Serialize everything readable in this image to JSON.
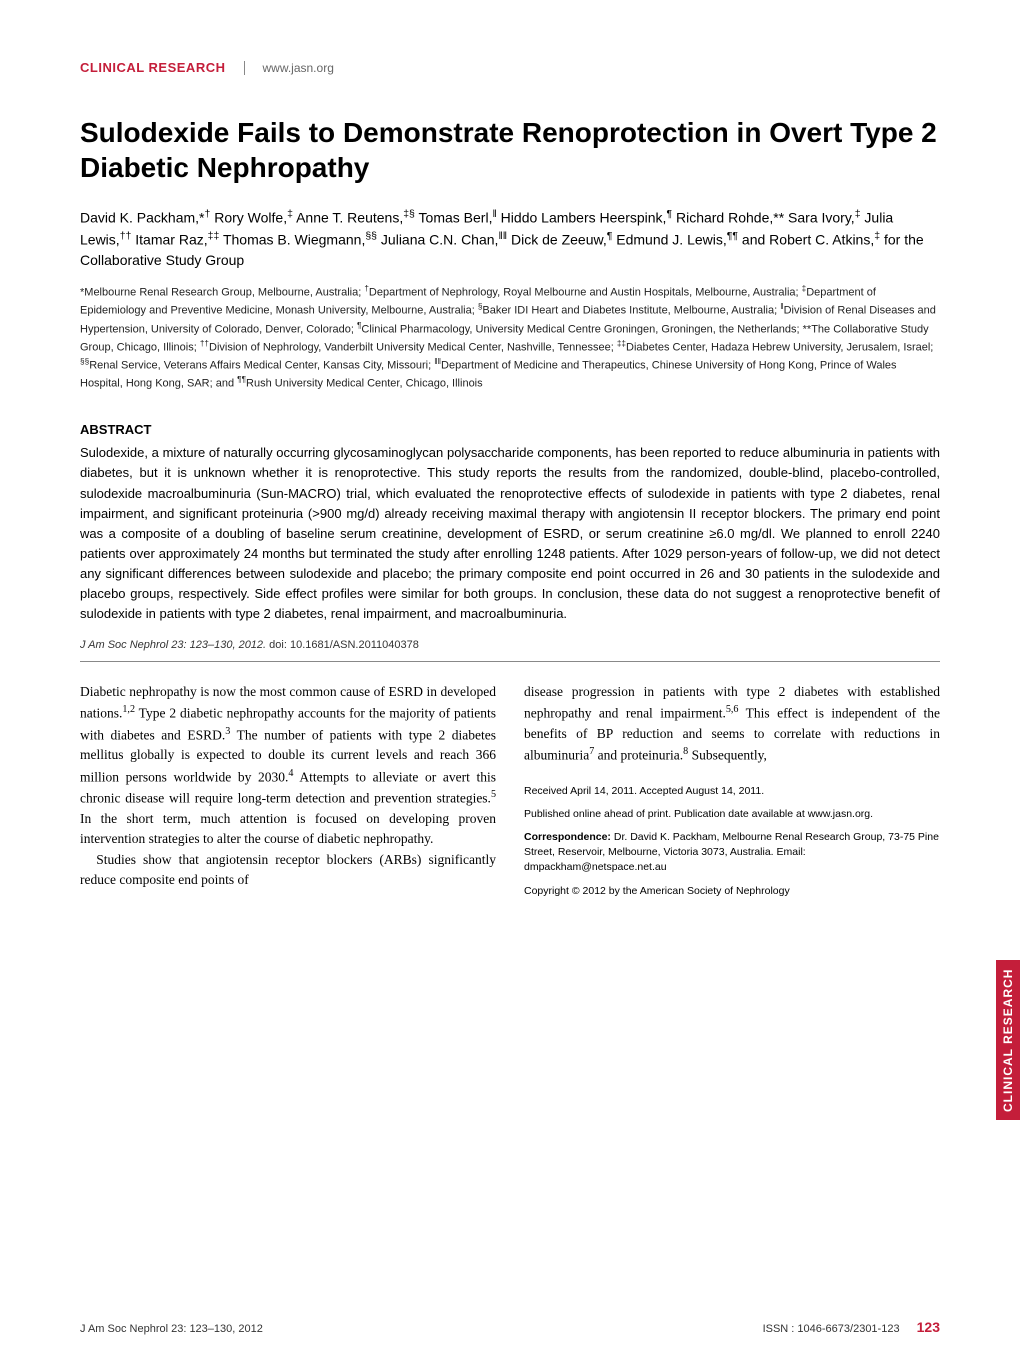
{
  "colors": {
    "accent": "#c41e3a",
    "text": "#000000",
    "muted": "#666666",
    "rule": "#888888",
    "background": "#ffffff",
    "tab_text": "#ffffff"
  },
  "typography": {
    "title_fontsize_pt": 21,
    "body_fontsize_pt": 10,
    "abstract_fontsize_pt": 10,
    "affil_fontsize_pt": 8.5,
    "meta_fontsize_pt": 8
  },
  "header": {
    "section_label": "CLINICAL RESEARCH",
    "site_url": "www.jasn.org"
  },
  "title": "Sulodexide Fails to Demonstrate Renoprotection in Overt Type 2 Diabetic Nephropathy",
  "authors_html": "David K. Packham,*<sup>†</sup> Rory Wolfe,<sup>‡</sup> Anne T. Reutens,<sup>‡§</sup> Tomas Berl,<sup>‖</sup> Hiddo Lambers Heerspink,<sup>¶</sup> Richard Rohde,** Sara Ivory,<sup>‡</sup> Julia Lewis,<sup>††</sup> Itamar Raz,<sup>‡‡</sup> Thomas B. Wiegmann,<sup>§§</sup> Juliana C.N. Chan,<sup>‖‖</sup> Dick de Zeeuw,<sup>¶</sup> Edmund J. Lewis,<sup>¶¶</sup> and Robert C. Atkins,<sup>‡</sup> for the Collaborative Study Group",
  "affiliations_html": "*Melbourne Renal Research Group, Melbourne, Australia; <sup>†</sup>Department of Nephrology, Royal Melbourne and Austin Hospitals, Melbourne, Australia; <sup>‡</sup>Department of Epidemiology and Preventive Medicine, Monash University, Melbourne, Australia; <sup>§</sup>Baker IDI Heart and Diabetes Institute, Melbourne, Australia; <sup>‖</sup>Division of Renal Diseases and Hypertension, University of Colorado, Denver, Colorado; <sup>¶</sup>Clinical Pharmacology, University Medical Centre Groningen, Groningen, the Netherlands; **The Collaborative Study Group, Chicago, Illinois; <sup>††</sup>Division of Nephrology, Vanderbilt University Medical Center, Nashville, Tennessee; <sup>‡‡</sup>Diabetes Center, Hadaza Hebrew University, Jerusalem, Israel; <sup>§§</sup>Renal Service, Veterans Affairs Medical Center, Kansas City, Missouri; <sup>‖‖</sup>Department of Medicine and Therapeutics, Chinese University of Hong Kong, Prince of Wales Hospital, Hong Kong, SAR; and <sup>¶¶</sup>Rush University Medical Center, Chicago, Illinois",
  "abstract": {
    "heading": "ABSTRACT",
    "text": "Sulodexide, a mixture of naturally occurring glycosaminoglycan polysaccharide components, has been reported to reduce albuminuria in patients with diabetes, but it is unknown whether it is renoprotective. This study reports the results from the randomized, double-blind, placebo-controlled, sulodexide macroalbuminuria (Sun-MACRO) trial, which evaluated the renoprotective effects of sulodexide in patients with type 2 diabetes, renal impairment, and significant proteinuria (>900 mg/d) already receiving maximal therapy with angiotensin II receptor blockers. The primary end point was a composite of a doubling of baseline serum creatinine, development of ESRD, or serum creatinine ≥6.0 mg/dl. We planned to enroll 2240 patients over approximately 24 months but terminated the study after enrolling 1248 patients. After 1029 person-years of follow-up, we did not detect any significant differences between sulodexide and placebo; the primary composite end point occurred in 26 and 30 patients in the sulodexide and placebo groups, respectively. Side effect profiles were similar for both groups. In conclusion, these data do not suggest a renoprotective benefit of sulodexide in patients with type 2 diabetes, renal impairment, and macroalbuminuria."
  },
  "citation": {
    "journal_ref": "J Am Soc Nephrol 23: 123–130, 2012.",
    "doi": "doi: 10.1681/ASN.2011040378"
  },
  "body": {
    "left_p1_html": "Diabetic nephropathy is now the most common cause of ESRD in developed nations.<sup>1,2</sup> Type 2 diabetic nephropathy accounts for the majority of patients with diabetes and ESRD.<sup>3</sup> The number of patients with type 2 diabetes mellitus globally is expected to double its current levels and reach 366 million persons worldwide by 2030.<sup>4</sup> Attempts to alleviate or avert this chronic disease will require long-term detection and prevention strategies.<sup>5</sup> In the short term, much attention is focused on developing proven intervention strategies to alter the course of diabetic nephropathy.",
    "left_p2_html": "Studies show that angiotensin receptor blockers (ARBs) significantly reduce composite end points of",
    "right_p1_html": "disease progression in patients with type 2 diabetes with established nephropathy and renal impairment.<sup>5,6</sup> This effect is independent of the benefits of BP reduction and seems to correlate with reductions in albuminuria<sup>7</sup> and proteinuria.<sup>8</sup> Subsequently,"
  },
  "meta": {
    "received": "Received April 14, 2011. Accepted August 14, 2011.",
    "published": "Published online ahead of print. Publication date available at www.jasn.org.",
    "correspondence_label": "Correspondence:",
    "correspondence_text": " Dr. David K. Packham, Melbourne Renal Research Group, 73-75 Pine Street, Reservoir, Melbourne, Victoria 3073, Australia. Email: dmpackham@netspace.net.au",
    "copyright": "Copyright © 2012 by the American Society of Nephrology"
  },
  "side_tab": "CLINICAL RESEARCH",
  "footer": {
    "left": "J Am Soc Nephrol 23: 123–130, 2012",
    "issn": "ISSN : 1046-6673/2301-123",
    "page": "123"
  }
}
